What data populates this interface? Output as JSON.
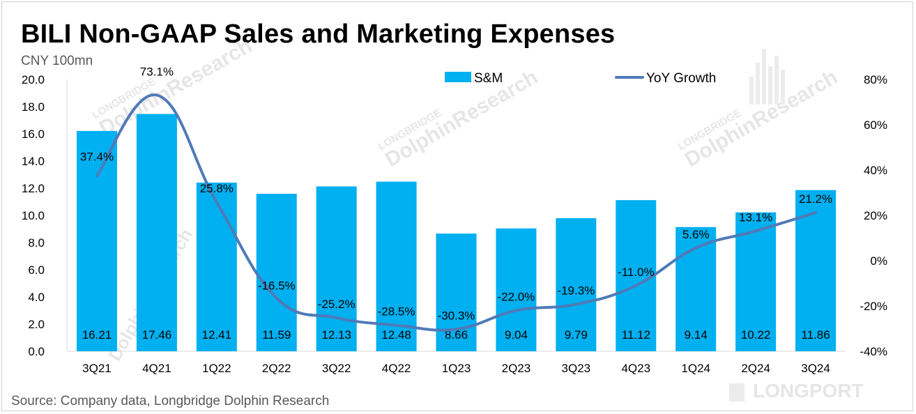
{
  "title": "BILI Non-GAAP Sales and Marketing Expenses",
  "unit_label": "CNY 100mn",
  "source": "Source: Company data, Longbridge Dolphin Research",
  "watermark": {
    "small": "LONGBRIDGE",
    "big": "DolphinResearch",
    "corner": "LONGPORT"
  },
  "colors": {
    "bar": "#00b0f0",
    "line": "#4f7ab8"
  },
  "chart_data": {
    "type": "bar",
    "categories": [
      "3Q21",
      "4Q21",
      "1Q22",
      "2Q22",
      "3Q22",
      "4Q22",
      "1Q23",
      "2Q23",
      "3Q23",
      "4Q23",
      "1Q24",
      "2Q24",
      "3Q24"
    ],
    "series": [
      {
        "name": "S&M",
        "type": "bar",
        "axis": "left",
        "values": [
          16.21,
          17.46,
          12.41,
          11.59,
          12.13,
          12.48,
          8.66,
          9.04,
          9.79,
          11.12,
          9.14,
          10.22,
          11.86
        ],
        "labels": [
          "16.21",
          "17.46",
          "12.41",
          "11.59",
          "12.13",
          "12.48",
          "8.66",
          "9.04",
          "9.79",
          "11.12",
          "9.14",
          "10.22",
          "11.86"
        ]
      },
      {
        "name": "YoY Growth",
        "type": "line",
        "axis": "right",
        "values": [
          37.4,
          73.1,
          25.8,
          -16.5,
          -25.2,
          -28.5,
          -30.3,
          -22.0,
          -19.3,
          -11.0,
          5.6,
          13.1,
          21.2
        ],
        "labels": [
          "37.4%",
          "73.1%",
          "25.8%",
          "-16.5%",
          "-25.2%",
          "-28.5%",
          "-30.3%",
          "-22.0%",
          "-19.3%",
          "-11.0%",
          "5.6%",
          "13.1%",
          "21.2%"
        ]
      }
    ],
    "ylim": [
      0,
      20
    ],
    "yticks": [
      "20.0",
      "18.0",
      "16.0",
      "14.0",
      "12.0",
      "10.0",
      "8.0",
      "6.0",
      "4.0",
      "2.0",
      "0.0"
    ],
    "y2lim": [
      -40,
      80
    ],
    "y2ticks": [
      "80%",
      "60%",
      "40%",
      "20%",
      "0%",
      "-20%",
      "-40%"
    ],
    "legend": {
      "position": "top",
      "items": [
        "S&M",
        "YoY Growth"
      ]
    }
  }
}
